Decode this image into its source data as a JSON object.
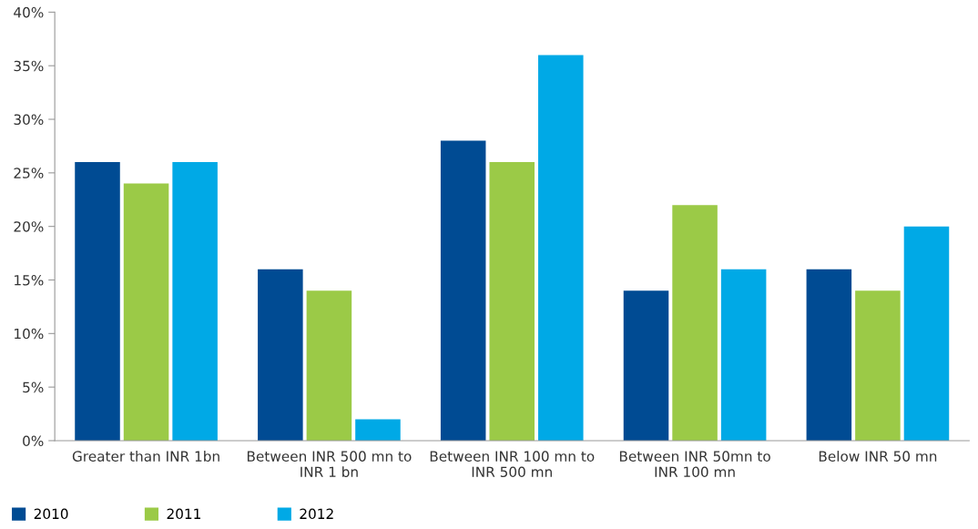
{
  "chart_data": {
    "type": "bar",
    "categories": [
      "Greater than INR 1bn",
      "Between INR 500 mn to\nINR 1 bn",
      "Between INR 100 mn to\nINR 500 mn",
      "Between INR 50mn to\nINR 100 mn",
      "Below INR 50 mn"
    ],
    "series": [
      {
        "name": "2010",
        "color": "#004b93",
        "values": [
          26,
          16,
          28,
          14,
          16
        ]
      },
      {
        "name": "2011",
        "color": "#9bca47",
        "values": [
          24,
          14,
          26,
          22,
          14
        ]
      },
      {
        "name": "2012",
        "color": "#00a9e6",
        "values": [
          26,
          2,
          36,
          16,
          20
        ]
      }
    ],
    "ylim": [
      0,
      40
    ],
    "yticks": [
      {
        "value": 0,
        "label": "0%"
      },
      {
        "value": 5,
        "label": "5%"
      },
      {
        "value": 10,
        "label": "10%"
      },
      {
        "value": 15,
        "label": "15%"
      },
      {
        "value": 20,
        "label": "20%"
      },
      {
        "value": 25,
        "label": "25%"
      },
      {
        "value": 30,
        "label": "30%"
      },
      {
        "value": 35,
        "label": "35%"
      },
      {
        "value": 40,
        "label": "40%"
      }
    ],
    "grid": false,
    "legend": "bottom left"
  }
}
